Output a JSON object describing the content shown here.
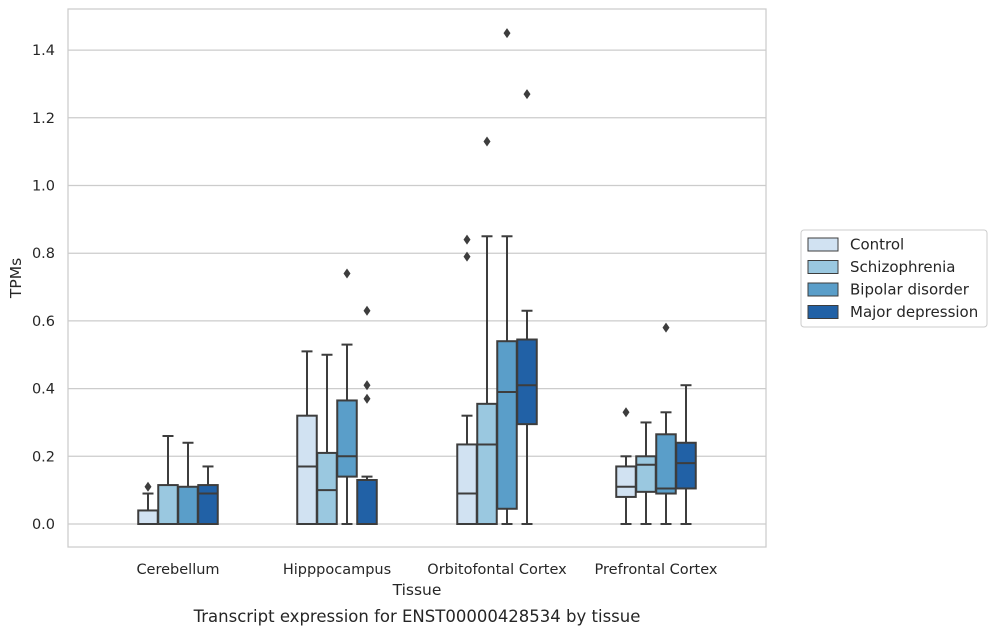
{
  "caption": "Transcript expression for ENST00000428534 by tissue",
  "chart_data": {
    "type": "box",
    "xlabel": "Tissue",
    "ylabel": "TPMs",
    "ylim": [
      -0.07,
      1.53
    ],
    "yticks": [
      "0.0",
      "0.2",
      "0.4",
      "0.6",
      "0.8",
      "1.0",
      "1.2",
      "1.4"
    ],
    "grid": true,
    "legend_position": "right",
    "categories": [
      "Cerebellum",
      "Hipppocampus",
      "Orbitofontal Cortex",
      "Prefrontal Cortex"
    ],
    "series": [
      {
        "name": "Control",
        "color": "#d1e2f2",
        "boxes": [
          {
            "min": 0.0,
            "q1": 0.0,
            "median": 0.0,
            "q3": 0.04,
            "max": 0.09,
            "outliers": [
              0.11
            ]
          },
          {
            "min": 0.0,
            "q1": 0.0,
            "median": 0.17,
            "q3": 0.32,
            "max": 0.51,
            "outliers": []
          },
          {
            "min": 0.0,
            "q1": 0.0,
            "median": 0.09,
            "q3": 0.235,
            "max": 0.32,
            "outliers": [
              0.79,
              0.84
            ]
          },
          {
            "min": 0.0,
            "q1": 0.08,
            "median": 0.11,
            "q3": 0.17,
            "max": 0.2,
            "outliers": [
              0.33
            ]
          }
        ]
      },
      {
        "name": "Schizophrenia",
        "color": "#9ac8e0",
        "boxes": [
          {
            "min": 0.0,
            "q1": 0.0,
            "median": 0.0,
            "q3": 0.115,
            "max": 0.26,
            "outliers": []
          },
          {
            "min": 0.0,
            "q1": 0.0,
            "median": 0.1,
            "q3": 0.21,
            "max": 0.5,
            "outliers": []
          },
          {
            "min": 0.0,
            "q1": 0.0,
            "median": 0.235,
            "q3": 0.355,
            "max": 0.85,
            "outliers": [
              1.13
            ]
          },
          {
            "min": 0.0,
            "q1": 0.095,
            "median": 0.175,
            "q3": 0.2,
            "max": 0.3,
            "outliers": []
          }
        ]
      },
      {
        "name": "Bipolar disorder",
        "color": "#5a9ec9",
        "boxes": [
          {
            "min": 0.0,
            "q1": 0.0,
            "median": 0.0,
            "q3": 0.11,
            "max": 0.24,
            "outliers": []
          },
          {
            "min": 0.0,
            "q1": 0.14,
            "median": 0.2,
            "q3": 0.365,
            "max": 0.53,
            "outliers": [
              0.74
            ]
          },
          {
            "min": 0.0,
            "q1": 0.045,
            "median": 0.39,
            "q3": 0.54,
            "max": 0.85,
            "outliers": [
              1.45
            ]
          },
          {
            "min": 0.0,
            "q1": 0.09,
            "median": 0.105,
            "q3": 0.265,
            "max": 0.33,
            "outliers": [
              0.58
            ]
          }
        ]
      },
      {
        "name": "Major depression",
        "color": "#2161a6",
        "boxes": [
          {
            "min": 0.0,
            "q1": 0.0,
            "median": 0.09,
            "q3": 0.115,
            "max": 0.17,
            "outliers": []
          },
          {
            "min": 0.0,
            "q1": 0.0,
            "median": 0.0,
            "q3": 0.13,
            "max": 0.14,
            "outliers": [
              0.37,
              0.41,
              0.63
            ]
          },
          {
            "min": 0.0,
            "q1": 0.295,
            "median": 0.41,
            "q3": 0.545,
            "max": 0.63,
            "outliers": [
              1.27
            ]
          },
          {
            "min": 0.0,
            "q1": 0.105,
            "median": 0.18,
            "q3": 0.24,
            "max": 0.41,
            "outliers": []
          }
        ]
      }
    ]
  }
}
